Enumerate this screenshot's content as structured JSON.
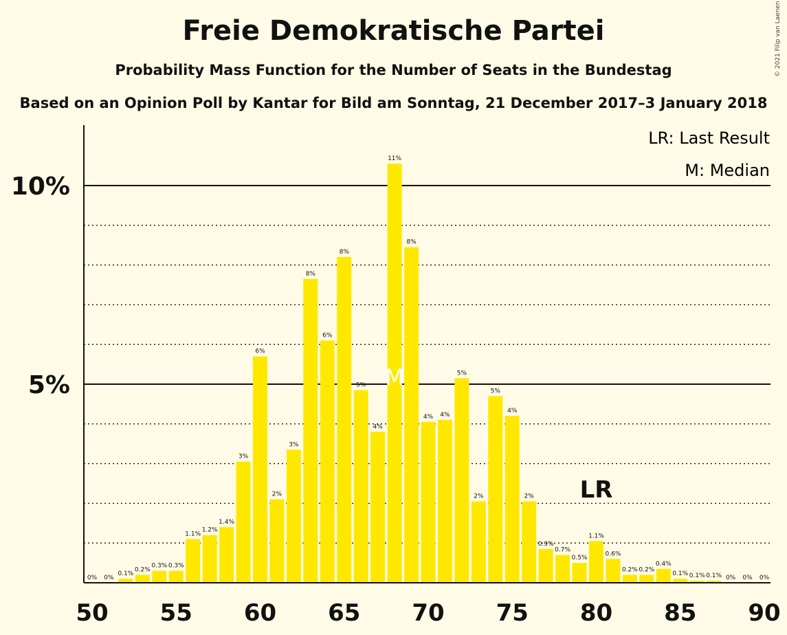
{
  "title": "Freie Demokratische Partei",
  "subtitle": "Probability Mass Function for the Number of Seats in the Bundestag",
  "subtitle2": "Based on an Opinion Poll by Kantar for Bild am Sonntag, 21 December 2017–3 January 2018",
  "copyright": "© 2021 Filip van Laenen",
  "legend": {
    "lr": "LR: Last Result",
    "m": "M: Median"
  },
  "colors": {
    "bar": "#ffe800",
    "background": "#fffbe6",
    "marker_text": "#ffffff"
  },
  "chart_data": {
    "type": "bar",
    "x": [
      50,
      51,
      52,
      53,
      54,
      55,
      56,
      57,
      58,
      59,
      60,
      61,
      62,
      63,
      64,
      65,
      66,
      67,
      68,
      69,
      70,
      71,
      72,
      73,
      74,
      75,
      76,
      77,
      78,
      79,
      80,
      81,
      82,
      83,
      84,
      85,
      86,
      87,
      88,
      89,
      90
    ],
    "values": [
      0,
      0,
      0.1,
      0.2,
      0.3,
      0.3,
      1.1,
      1.2,
      1.4,
      3.05,
      5.7,
      2.1,
      3.35,
      7.65,
      6.1,
      8.2,
      4.85,
      3.8,
      10.55,
      8.45,
      4.05,
      4.1,
      5.15,
      2.05,
      4.7,
      4.2,
      2.05,
      0.85,
      0.7,
      0.5,
      1.05,
      0.6,
      0.2,
      0.2,
      0.35,
      0.1,
      0.05,
      0.05,
      0,
      0,
      0
    ],
    "labels": [
      "0%",
      "0%",
      "0.1%",
      "0.2%",
      "0.3%",
      "0.3%",
      "1.1%",
      "1.2%",
      "1.4%",
      "3%",
      "6%",
      "2%",
      "3%",
      "8%",
      "6%",
      "8%",
      "5%",
      "4%",
      "11%",
      "8%",
      "4%",
      "4%",
      "5%",
      "2%",
      "5%",
      "4%",
      "2%",
      "0.9%",
      "0.7%",
      "0.5%",
      "1.1%",
      "0.6%",
      "0.2%",
      "0.2%",
      "0.4%",
      "0.1%",
      "0.1%",
      "0.1%",
      "0%",
      "0%",
      "0%"
    ],
    "x_ticks": [
      50,
      55,
      60,
      65,
      70,
      75,
      80,
      85,
      90
    ],
    "y_ticks": [
      {
        "value": 5,
        "label": "5%"
      },
      {
        "value": 10,
        "label": "10%"
      }
    ],
    "ylim": [
      0,
      11.5
    ],
    "xlabel": "",
    "ylabel": "",
    "median": {
      "seat": 68,
      "label": "M"
    },
    "last_result": {
      "seat": 80,
      "label": "LR"
    },
    "grid": "dotted every 1%, solid at 5% and 10%"
  }
}
